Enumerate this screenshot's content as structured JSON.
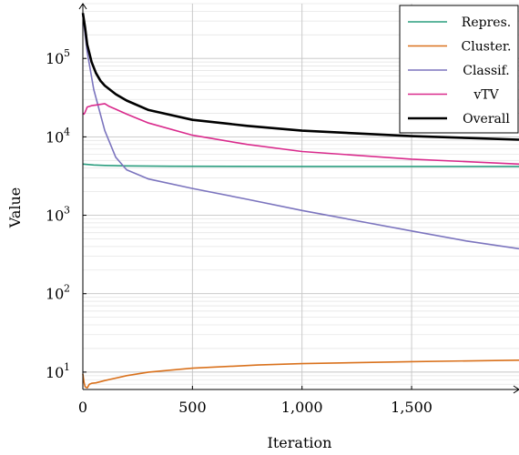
{
  "chart_data": {
    "type": "line",
    "xlabel": "Iteration",
    "ylabel": "Value",
    "xlim": [
      0,
      1990
    ],
    "ylim": [
      6,
      500000
    ],
    "yscale": "log",
    "x_ticks": [
      0,
      500,
      1000,
      1500
    ],
    "x_tick_labels": [
      "0",
      "500",
      "1,000",
      "1,500"
    ],
    "y_ticks": [
      10,
      100,
      1000,
      10000,
      100000
    ],
    "y_tick_labels": [
      "10",
      "10",
      "10",
      "10",
      "10"
    ],
    "y_tick_exponents": [
      "1",
      "2",
      "3",
      "4",
      "5"
    ],
    "grid": true,
    "legend_position": "top-right",
    "series": [
      {
        "name": "Repres.",
        "color": "#2a9d7e",
        "x": [
          0,
          50,
          100,
          200,
          400,
          1000,
          1500,
          1990
        ],
        "y": [
          4500,
          4380,
          4320,
          4260,
          4220,
          4200,
          4200,
          4200
        ]
      },
      {
        "name": "Cluster.",
        "color": "#d9711c",
        "x": [
          0,
          5,
          10,
          20,
          30,
          40,
          60,
          100,
          200,
          300,
          500,
          800,
          1000,
          1500,
          1990
        ],
        "y": [
          9.5,
          7.5,
          6.5,
          6.3,
          7.0,
          7.2,
          7.3,
          7.8,
          9.0,
          10.0,
          11.2,
          12.3,
          12.8,
          13.6,
          14.2
        ]
      },
      {
        "name": "Classif.",
        "color": "#7b74be",
        "x": [
          0,
          20,
          50,
          100,
          150,
          200,
          300,
          500,
          750,
          1000,
          1250,
          1500,
          1750,
          1990
        ],
        "y": [
          350000,
          120000,
          40000,
          12000,
          5500,
          3800,
          2900,
          2200,
          1600,
          1150,
          850,
          630,
          470,
          375
        ]
      },
      {
        "name": "vTV",
        "color": "#d92a8c",
        "x": [
          0,
          5,
          10,
          20,
          40,
          60,
          100,
          120,
          150,
          200,
          300,
          500,
          750,
          1000,
          1500,
          1990
        ],
        "y": [
          20000,
          19500,
          20500,
          24000,
          25000,
          25500,
          26500,
          24500,
          22500,
          19500,
          15000,
          10500,
          8000,
          6500,
          5200,
          4500
        ]
      },
      {
        "name": "Overall",
        "color": "#000000",
        "x": [
          0,
          10,
          20,
          40,
          60,
          80,
          100,
          150,
          200,
          300,
          500,
          750,
          1000,
          1500,
          1990
        ],
        "y": [
          380000,
          250000,
          150000,
          90000,
          65000,
          52000,
          45000,
          35000,
          29000,
          22000,
          16500,
          13800,
          12000,
          10200,
          9200
        ]
      }
    ]
  }
}
